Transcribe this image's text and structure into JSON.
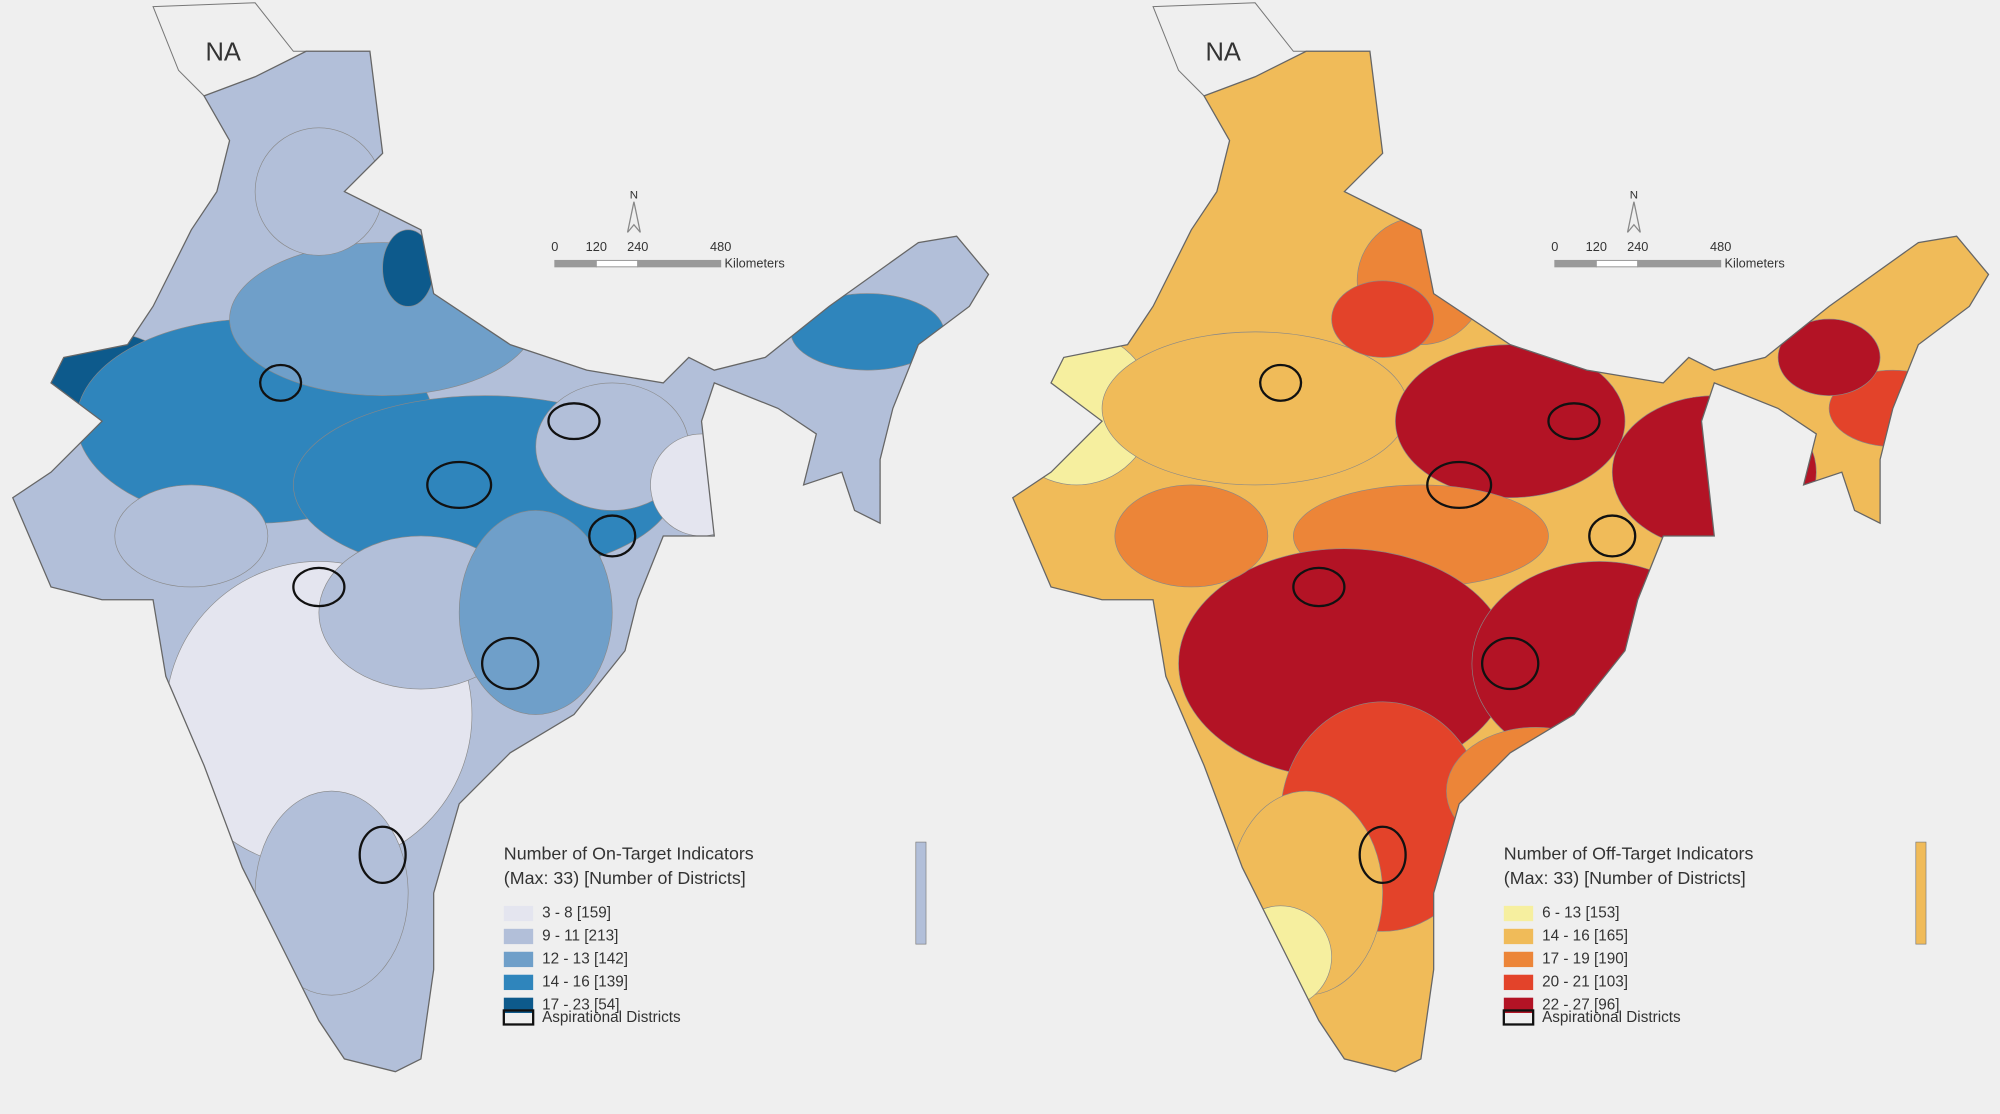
{
  "maps": [
    {
      "na_label": "NA",
      "north_label": "N",
      "scale_bar": {
        "ticks": [
          0,
          120,
          240,
          480
        ],
        "unit": "Kilometers"
      },
      "legend": {
        "title_lines": [
          "Number of On-Target Indicators",
          "(Max: 33) [Number of Districts]"
        ],
        "classes": [
          {
            "label": "3 - 8  [159]",
            "color": "#e4e5ef"
          },
          {
            "label": "9 - 11  [213]",
            "color": "#b2bfd9"
          },
          {
            "label": "12 - 13  [142]",
            "color": "#6f9fc9"
          },
          {
            "label": "14 - 16  [139]",
            "color": "#2f85bc"
          },
          {
            "label": "17 - 23  [54]",
            "color": "#0d5a8c"
          }
        ],
        "outline_label": "Aspirational Districts"
      }
    },
    {
      "na_label": "NA",
      "north_label": "N",
      "scale_bar": {
        "ticks": [
          0,
          120,
          240,
          480
        ],
        "unit": "Kilometers"
      },
      "legend": {
        "title_lines": [
          "Number of Off-Target Indicators",
          "(Max: 33) [Number of Districts]"
        ],
        "classes": [
          {
            "label": "6 - 13  [153]",
            "color": "#f6ef9f"
          },
          {
            "label": "14 - 16  [165]",
            "color": "#f0bb59"
          },
          {
            "label": "17 - 19  [190]",
            "color": "#ec8538"
          },
          {
            "label": "20 - 21  [103]",
            "color": "#e3432a"
          },
          {
            "label": "22 - 27  [96]",
            "color": "#b31325"
          }
        ],
        "outline_label": "Aspirational Districts"
      }
    }
  ]
}
